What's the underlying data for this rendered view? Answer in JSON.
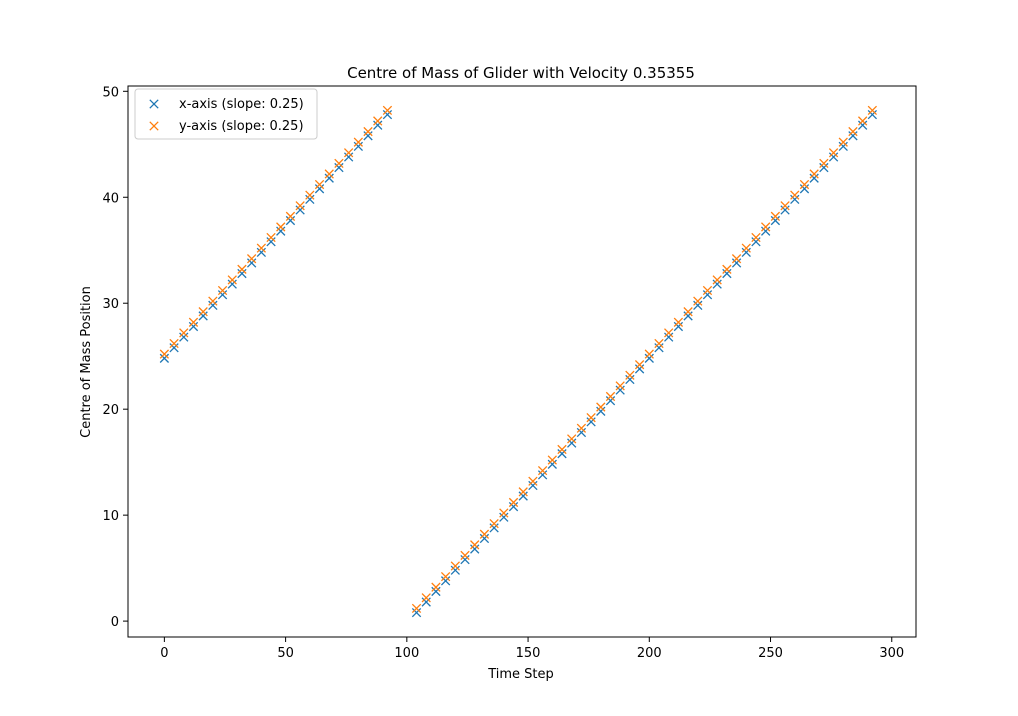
{
  "chart_data": {
    "type": "scatter",
    "title": "Centre of Mass of Glider with Velocity 0.35355",
    "xlabel": "Time Step",
    "ylabel": "Centre of Mass Position",
    "xlim": [
      -15,
      310
    ],
    "ylim": [
      -1.5,
      50.5
    ],
    "xticks": [
      0,
      50,
      100,
      150,
      200,
      250,
      300
    ],
    "yticks": [
      0,
      10,
      20,
      30,
      40,
      50
    ],
    "grid": false,
    "legend_position": "top-left",
    "marker": "x",
    "series": [
      {
        "name": "x-axis (slope: 0.25)",
        "color": "#1f77b4",
        "x": [
          0,
          4,
          8,
          12,
          16,
          20,
          24,
          28,
          32,
          36,
          40,
          44,
          48,
          52,
          56,
          60,
          64,
          68,
          72,
          76,
          80,
          84,
          88,
          92,
          104,
          108,
          112,
          116,
          120,
          124,
          128,
          132,
          136,
          140,
          144,
          148,
          152,
          156,
          160,
          164,
          168,
          172,
          176,
          180,
          184,
          188,
          192,
          196,
          200,
          204,
          208,
          212,
          216,
          220,
          224,
          228,
          232,
          236,
          240,
          244,
          248,
          252,
          256,
          260,
          264,
          268,
          272,
          276,
          280,
          284,
          288,
          292
        ],
        "y": [
          24.8,
          25.8,
          26.8,
          27.8,
          28.8,
          29.8,
          30.8,
          31.8,
          32.8,
          33.8,
          34.8,
          35.8,
          36.8,
          37.8,
          38.8,
          39.8,
          40.8,
          41.8,
          42.8,
          43.8,
          44.8,
          45.8,
          46.8,
          47.8,
          0.8,
          1.8,
          2.8,
          3.8,
          4.8,
          5.8,
          6.8,
          7.8,
          8.8,
          9.8,
          10.8,
          11.8,
          12.8,
          13.8,
          14.8,
          15.8,
          16.8,
          17.8,
          18.8,
          19.8,
          20.8,
          21.8,
          22.8,
          23.8,
          24.8,
          25.8,
          26.8,
          27.8,
          28.8,
          29.8,
          30.8,
          31.8,
          32.8,
          33.8,
          34.8,
          35.8,
          36.8,
          37.8,
          38.8,
          39.8,
          40.8,
          41.8,
          42.8,
          43.8,
          44.8,
          45.8,
          46.8,
          47.8
        ]
      },
      {
        "name": "y-axis (slope: 0.25)",
        "color": "#ff7f0e",
        "x": [
          0,
          4,
          8,
          12,
          16,
          20,
          24,
          28,
          32,
          36,
          40,
          44,
          48,
          52,
          56,
          60,
          64,
          68,
          72,
          76,
          80,
          84,
          88,
          92,
          104,
          108,
          112,
          116,
          120,
          124,
          128,
          132,
          136,
          140,
          144,
          148,
          152,
          156,
          160,
          164,
          168,
          172,
          176,
          180,
          184,
          188,
          192,
          196,
          200,
          204,
          208,
          212,
          216,
          220,
          224,
          228,
          232,
          236,
          240,
          244,
          248,
          252,
          256,
          260,
          264,
          268,
          272,
          276,
          280,
          284,
          288,
          292
        ],
        "y": [
          25.2,
          26.2,
          27.2,
          28.2,
          29.2,
          30.2,
          31.2,
          32.2,
          33.2,
          34.2,
          35.2,
          36.2,
          37.2,
          38.2,
          39.2,
          40.2,
          41.2,
          42.2,
          43.2,
          44.2,
          45.2,
          46.2,
          47.2,
          48.2,
          1.2,
          2.2,
          3.2,
          4.2,
          5.2,
          6.2,
          7.2,
          8.2,
          9.2,
          10.2,
          11.2,
          12.2,
          13.2,
          14.2,
          15.2,
          16.2,
          17.2,
          18.2,
          19.2,
          20.2,
          21.2,
          22.2,
          23.2,
          24.2,
          25.2,
          26.2,
          27.2,
          28.2,
          29.2,
          30.2,
          31.2,
          32.2,
          33.2,
          34.2,
          35.2,
          36.2,
          37.2,
          38.2,
          39.2,
          40.2,
          41.2,
          42.2,
          43.2,
          44.2,
          45.2,
          46.2,
          47.2,
          48.2
        ]
      }
    ]
  }
}
